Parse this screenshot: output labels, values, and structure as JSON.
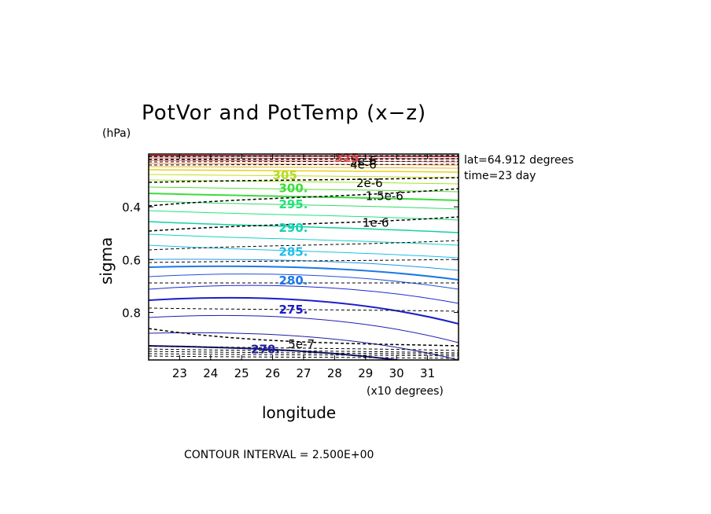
{
  "chart_data": {
    "type": "contour",
    "title": "PotVor and PotTemp (x−z)",
    "xlabel": "longitude",
    "x_unit_note": "(x10 degrees)",
    "ylabel": "sigma",
    "y_unit_note": "(hPa)",
    "xlim": [
      22,
      32
    ],
    "ylim": [
      0.98,
      0.2
    ],
    "x_ticks": [
      "23",
      "24",
      "25",
      "26",
      "27",
      "28",
      "29",
      "30",
      "31"
    ],
    "y_ticks": [
      "0.4",
      "0.6",
      "0.8"
    ],
    "annotations": [
      "lat=64.912 degrees",
      "time=23 day"
    ],
    "footer": "CONTOUR INTERVAL = 2.500E+00",
    "pottemp_labels": [
      {
        "text": "305",
        "color": "#b4dc1e",
        "x": 26.0,
        "y": 0.28
      },
      {
        "text": "300.",
        "color": "#3cdc3c",
        "x": 26.2,
        "y": 0.33
      },
      {
        "text": "295.",
        "color": "#1ee678",
        "x": 26.2,
        "y": 0.39
      },
      {
        "text": "290.",
        "color": "#14d2b4",
        "x": 26.2,
        "y": 0.48
      },
      {
        "text": "285.",
        "color": "#1ebeeb",
        "x": 26.2,
        "y": 0.57
      },
      {
        "text": "280.",
        "color": "#1e78e6",
        "x": 26.2,
        "y": 0.68
      },
      {
        "text": "275.",
        "color": "#1e1ec8",
        "x": 26.2,
        "y": 0.79
      },
      {
        "text": "270.",
        "color": "#1e1ea0",
        "x": 25.3,
        "y": 0.94
      },
      {
        "text": "325",
        "color": "#dc4646",
        "x": 28.0,
        "y": 0.215
      }
    ],
    "pv_labels": [
      {
        "text": "5e-6",
        "x": 28.5,
        "y": 0.225
      },
      {
        "text": "4e-6",
        "x": 28.5,
        "y": 0.24
      },
      {
        "text": "2e-6",
        "x": 28.7,
        "y": 0.31
      },
      {
        "text": "1.5e-6",
        "x": 29.0,
        "y": 0.36
      },
      {
        "text": "1e-6",
        "x": 28.9,
        "y": 0.46
      },
      {
        "text": "5e-7",
        "x": 26.5,
        "y": 0.92
      }
    ]
  }
}
